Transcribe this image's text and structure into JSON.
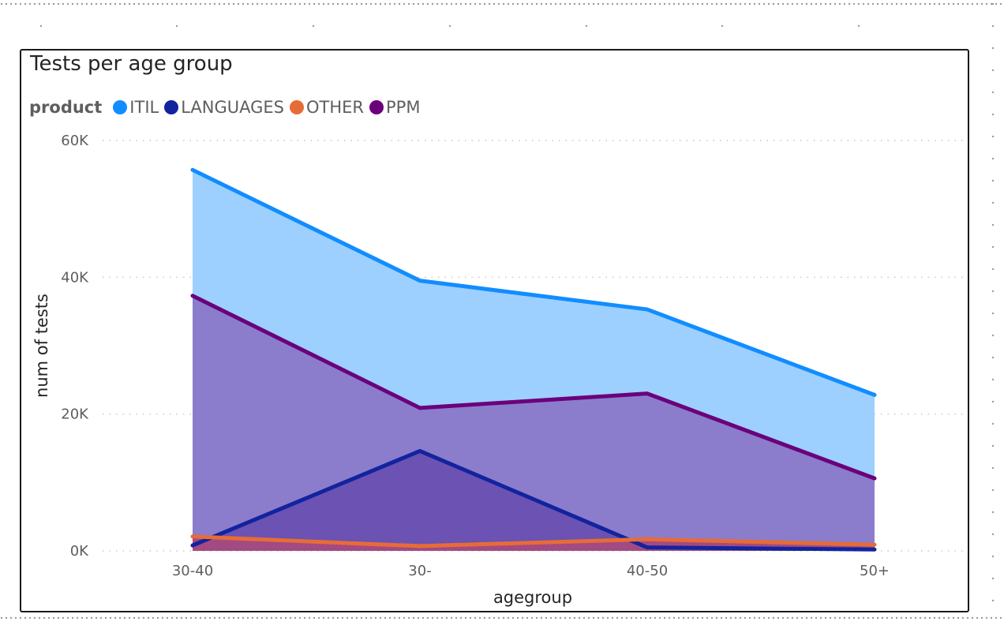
{
  "chart_data": {
    "type": "area",
    "title": "Tests per age group",
    "legend_title": "product",
    "legend_position": "top-left",
    "xlabel": "agegroup",
    "ylabel": "num of tests",
    "categories": [
      "30-40",
      "30-",
      "40-50",
      "50+"
    ],
    "ylim": [
      0,
      60000
    ],
    "yticks": [
      0,
      20000,
      40000,
      60000
    ],
    "ytick_labels": [
      "0K",
      "20K",
      "40K",
      "60K"
    ],
    "grid": true,
    "series": [
      {
        "name": "ITIL",
        "color": "#118DFF",
        "fill": "#9DD0FF",
        "values": [
          55700,
          39500,
          35300,
          22800
        ]
      },
      {
        "name": "LANGUAGES",
        "color": "#12239E",
        "fill": "#6B52B3",
        "values": [
          800,
          14600,
          500,
          200
        ]
      },
      {
        "name": "OTHER",
        "color": "#E66C37",
        "fill": "#A34A82",
        "values": [
          2100,
          700,
          1700,
          900
        ]
      },
      {
        "name": "PPM",
        "color": "#6B007B",
        "fill": "#8B7DCC",
        "values": [
          37300,
          20900,
          23000,
          10600
        ]
      }
    ]
  }
}
